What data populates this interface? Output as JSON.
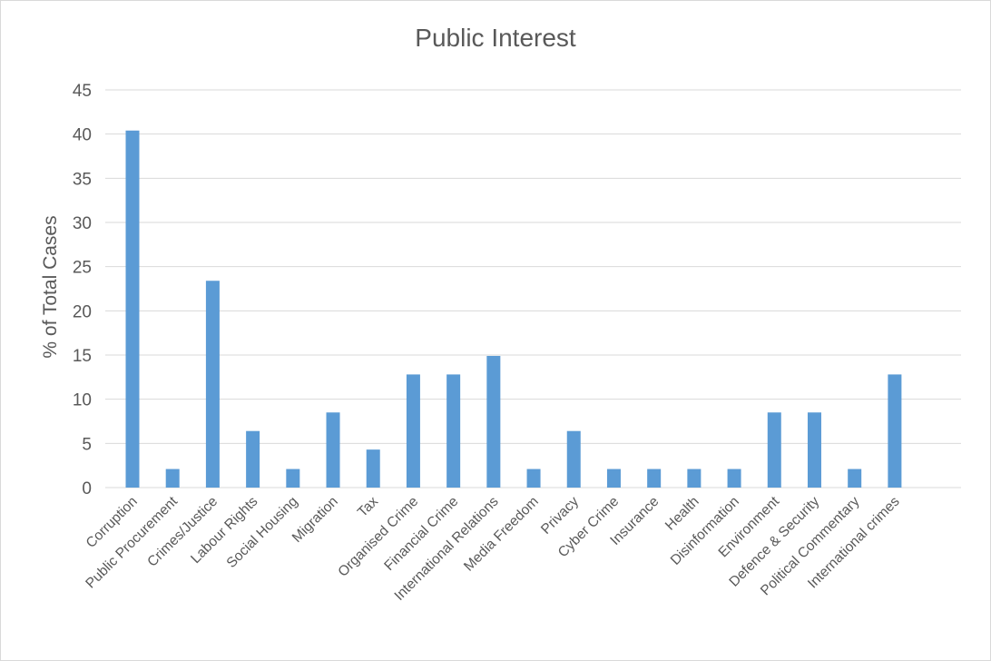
{
  "chart_data": {
    "type": "bar",
    "title": "Public Interest",
    "xlabel": "",
    "ylabel": "% of Total Cases",
    "ylim": [
      0,
      45
    ],
    "yticks": [
      0,
      5,
      10,
      15,
      20,
      25,
      30,
      35,
      40,
      45
    ],
    "grid": true,
    "legend": "none",
    "bar_color": "#5b9bd5",
    "categories": [
      "Corruption",
      "Public Procurement",
      "Crimes/Justice",
      "Labour Rights",
      "Social Housing",
      "Migration",
      "Tax",
      "Organised Crime",
      "Financial Crime",
      "International Relations",
      "Media Freedom",
      "Privacy",
      "Cyber Crime",
      "Insurance",
      "Health",
      "Disinformation",
      "Environment",
      "Defence & Security",
      "Political Commentary",
      "International crimes"
    ],
    "values": [
      40.4,
      2.1,
      23.4,
      6.4,
      2.1,
      8.5,
      4.3,
      12.8,
      12.8,
      14.9,
      2.1,
      6.4,
      2.1,
      2.1,
      2.1,
      2.1,
      8.5,
      8.5,
      2.1,
      12.8
    ]
  }
}
